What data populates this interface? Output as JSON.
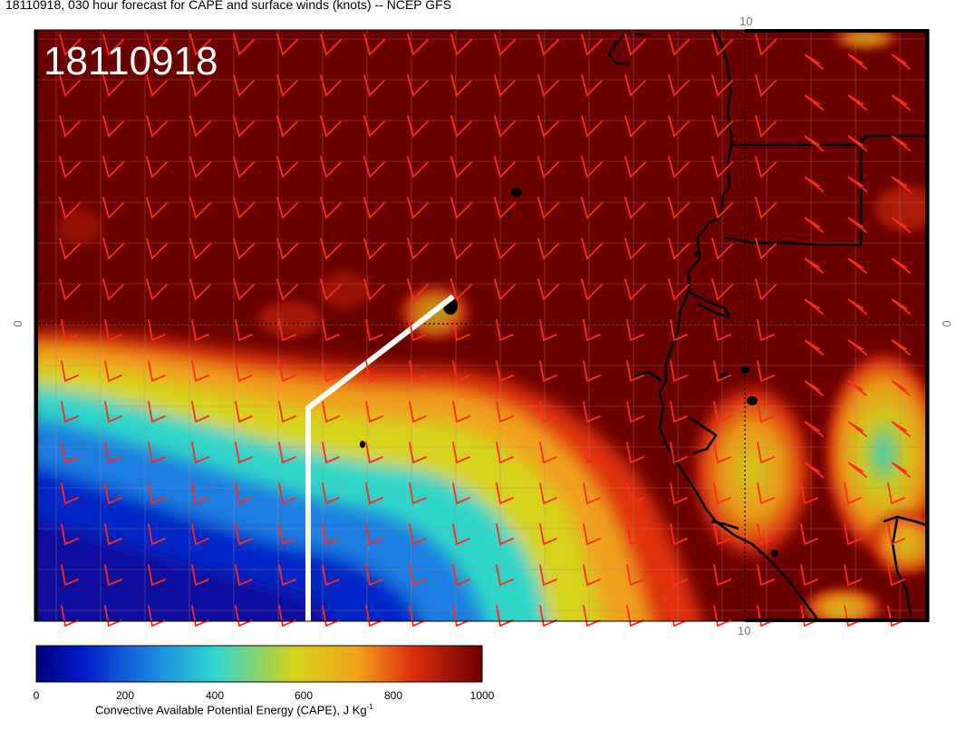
{
  "title": "18110918, 030 hour forecast for CAPE and surface winds (knots) -- NCEP GFS",
  "stamp": "18110918",
  "axis_labels": {
    "top_lon": "10",
    "bottom_lon": "10",
    "left_lat": "0",
    "right_lat": "0"
  },
  "colorbar": {
    "ticks": [
      "0",
      "200",
      "400",
      "600",
      "800",
      "1000"
    ],
    "label": "Convective Available Potential Energy (CAPE), J Kg",
    "label_superscript": "-1",
    "colors": [
      "#00007a",
      "#0032d4",
      "#1fa6e0",
      "#2ed6c8",
      "#d8d31a",
      "#f0a01a",
      "#e03010",
      "#b50000",
      "#6b0000"
    ]
  },
  "map": {
    "background": "#6b0000",
    "barb_color": "#ff2a1a",
    "line_color": "#ffffff",
    "coast_color": "#000000"
  }
}
